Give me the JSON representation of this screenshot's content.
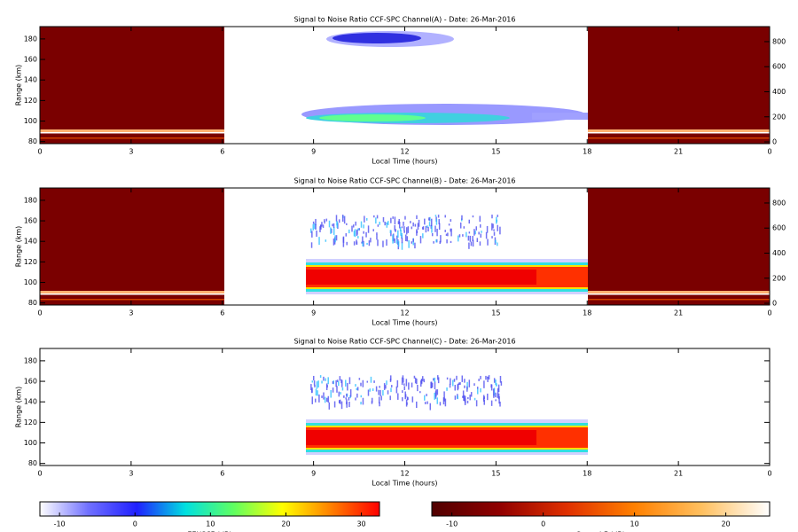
{
  "chart_data": [
    {
      "type": "heatmap",
      "title": "Signal to Noise Ratio CCF-SPC Channel(A) - Date: 26-Mar-2016",
      "xlabel": "Local Time (hours)",
      "ylabel": "Range (km)",
      "xlim": [
        0,
        24
      ],
      "xticks": [
        0,
        3,
        6,
        9,
        12,
        15,
        18,
        21,
        {
          "value": 24,
          "label": "0"
        }
      ],
      "ylim": [
        78,
        192
      ],
      "yticks": [
        80,
        100,
        120,
        140,
        160,
        180
      ],
      "y2lim": [
        -14,
        920
      ],
      "y2ticks": [
        0,
        200,
        400,
        600,
        800
      ]
    },
    {
      "type": "heatmap",
      "title": "Signal to Noise Ratio CCF-SPC Channel(B) - Date: 26-Mar-2016",
      "xlabel": "Local Time (hours)",
      "ylabel": "Range (km)",
      "xlim": [
        0,
        24
      ],
      "xticks": [
        0,
        3,
        6,
        9,
        12,
        15,
        18,
        21,
        {
          "value": 24,
          "label": "0"
        }
      ],
      "ylim": [
        78,
        192
      ],
      "yticks": [
        80,
        100,
        120,
        140,
        160,
        180
      ],
      "y2lim": [
        -14,
        920
      ],
      "y2ticks": [
        0,
        200,
        400,
        600,
        800
      ]
    },
    {
      "type": "heatmap",
      "title": "Signal to Noise Ratio CCF-SPC Channel(C) - Date: 26-Mar-2016",
      "xlabel": "Local Time (hours)",
      "ylabel": "Range (km)",
      "xlim": [
        0,
        24
      ],
      "xticks": [
        0,
        3,
        6,
        9,
        12,
        15,
        18,
        21,
        {
          "value": 24,
          "label": "0"
        }
      ],
      "ylim": [
        78,
        192
      ],
      "yticks": [
        80,
        100,
        120,
        140,
        160,
        180
      ]
    },
    {
      "type": "colorbar",
      "label": "EEJ/CCF (dB)",
      "xlim": [
        -12.6,
        32.4
      ],
      "xticks": [
        -10,
        0,
        10,
        20,
        30
      ],
      "colors": [
        "#ffffff",
        "#7070ff",
        "#2020ff",
        "#00e0e0",
        "#60ff60",
        "#ffff00",
        "#ff8000",
        "#ff0000"
      ]
    },
    {
      "type": "colorbar",
      "label": "Spread-F (dB)",
      "xlim": [
        -12.2,
        24.8
      ],
      "xticks": [
        -10,
        0,
        10,
        20
      ],
      "colors": [
        "#500000",
        "#900000",
        "#e03000",
        "#ff8000",
        "#ffc060",
        "#ffffff"
      ]
    }
  ]
}
